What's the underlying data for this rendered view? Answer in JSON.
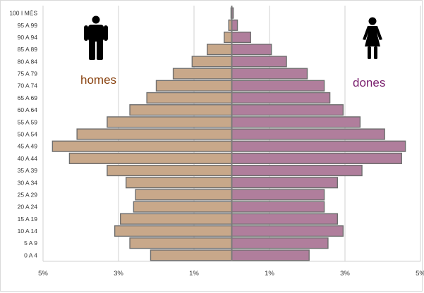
{
  "chart_data": {
    "type": "bar",
    "subtype": "population-pyramid",
    "title": "",
    "xlabel": "",
    "ylabel": "",
    "categories": [
      "0 A 4",
      "5 A 9",
      "10 A 14",
      "15 A 19",
      "20 A 24",
      "25 A 29",
      "30 A 34",
      "35 A 39",
      "40 A 44",
      "45 A 49",
      "50 A 54",
      "55 A 59",
      "60 A 64",
      "65 A 69",
      "70 A 74",
      "75 A 79",
      "80 A 84",
      "85 A 89",
      "90 A 94",
      "95 A 99",
      "100 I MÉS"
    ],
    "series": [
      {
        "name": "homes",
        "color": "#c8a88a",
        "values": [
          2.15,
          2.7,
          3.1,
          2.95,
          2.6,
          2.55,
          2.8,
          3.3,
          4.3,
          4.75,
          4.1,
          3.3,
          2.7,
          2.25,
          2.0,
          1.55,
          1.05,
          0.65,
          0.2,
          0.08,
          0.02
        ]
      },
      {
        "name": "dones",
        "color": "#b07e9c",
        "values": [
          2.05,
          2.55,
          2.95,
          2.8,
          2.45,
          2.45,
          2.8,
          3.45,
          4.5,
          4.6,
          4.05,
          3.4,
          2.95,
          2.6,
          2.45,
          2.0,
          1.45,
          1.05,
          0.5,
          0.15,
          0.04
        ]
      }
    ],
    "x_tick_labels": [
      "5%",
      "3%",
      "1%",
      "1%",
      "3%",
      "5%"
    ],
    "x_tick_values": [
      -5,
      -3,
      -1,
      1,
      3,
      5
    ],
    "xlim": [
      -5,
      5
    ],
    "grid": true,
    "legend": "inside, homes top-left with male icon, dones top-right with female icon"
  },
  "legend": {
    "men_label": "homes",
    "women_label": "dones",
    "men_icon": "man-silhouette-icon",
    "women_icon": "woman-silhouette-icon",
    "men_color": "#8b4513",
    "women_color": "#7a1f6e"
  }
}
